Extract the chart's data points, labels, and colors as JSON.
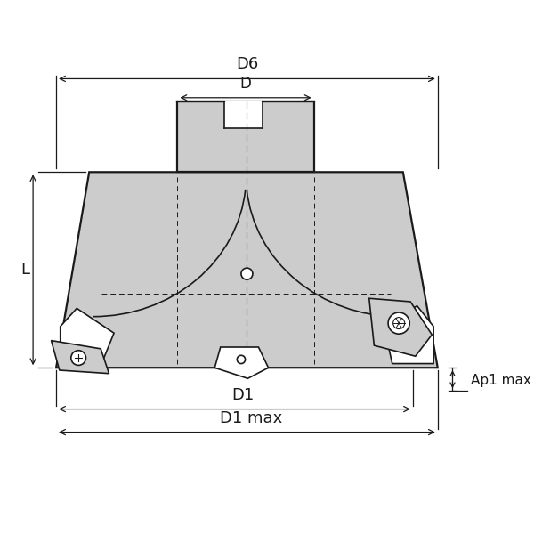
{
  "bg_color": "#ffffff",
  "line_color": "#1a1a1a",
  "fill_color": "#cccccc",
  "fill_light": "#d9d9d9",
  "figsize": [
    6.0,
    6.0
  ],
  "dpi": 100,
  "labels": {
    "D6": "D6",
    "D": "D",
    "L": "L",
    "D1": "D1",
    "D1max": "D1 max",
    "Ap1max": "Ap1 max"
  }
}
